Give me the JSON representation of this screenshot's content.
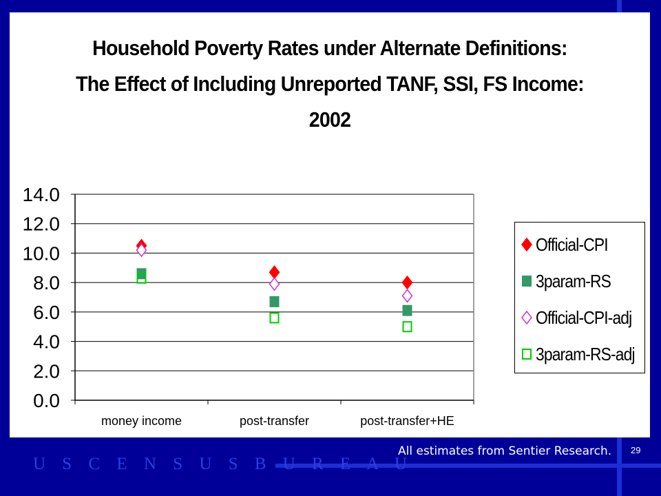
{
  "footer": {
    "note": "All estimates from Sentier Research.",
    "page_number": "29",
    "bureau": "U S C E N S U S B U R E A U"
  },
  "colors": {
    "background": "#000099",
    "accent_line": "#1a2fd6",
    "official_cpi": "#ff0000",
    "param_rs": "#339966",
    "official_cpi_adj": "#cc33cc",
    "param_rs_adj": "#00cc00"
  },
  "chart_data": {
    "type": "scatter",
    "title_lines": [
      "Household Poverty Rates under Alternate Definitions:",
      "The Effect of Including Unreported TANF, SSI, FS Income:",
      "2002"
    ],
    "categories": [
      "money income",
      "post-transfer",
      "post-transfer+HE"
    ],
    "ylim": [
      0,
      14
    ],
    "yticks": [
      "0.0",
      "2.0",
      "4.0",
      "6.0",
      "8.0",
      "10.0",
      "12.0",
      "14.0"
    ],
    "grid": true,
    "legend_position": "right",
    "series": [
      {
        "name": "Official-CPI",
        "marker": "diamond-filled",
        "color": "#ff0000",
        "values": [
          10.5,
          8.7,
          8.0
        ]
      },
      {
        "name": "3param-RS",
        "marker": "square-filled",
        "color": "#339966",
        "values": [
          8.6,
          6.7,
          6.1
        ]
      },
      {
        "name": "Official-CPI-adj",
        "marker": "diamond-open",
        "color": "#cc33cc",
        "values": [
          10.2,
          7.9,
          7.1
        ]
      },
      {
        "name": "3param-RS-adj",
        "marker": "square-open",
        "color": "#00cc00",
        "values": [
          8.3,
          5.6,
          5.0
        ]
      }
    ]
  }
}
